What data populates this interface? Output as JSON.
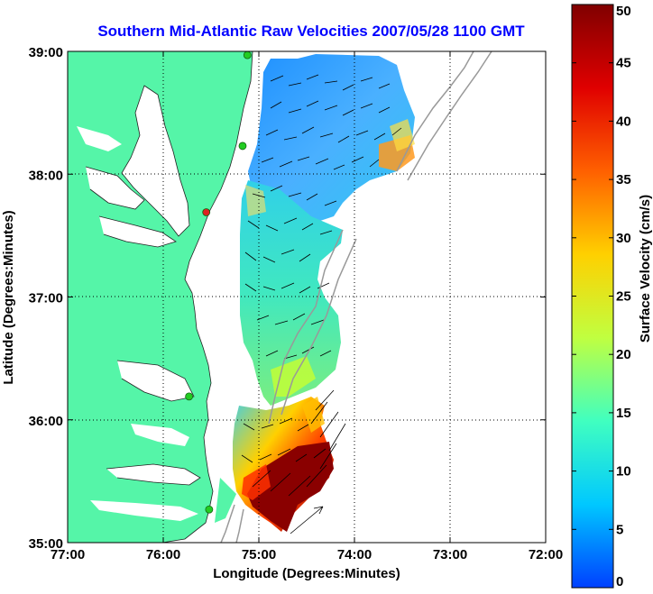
{
  "title": "Southern Mid-Atlantic Raw Velocities 2007/05/28 1100 GMT",
  "x_axis": {
    "label": "Longitude (Degrees:Minutes)",
    "ticks": [
      "77:00",
      "76:00",
      "75:00",
      "74:00",
      "73:00",
      "72:00"
    ]
  },
  "y_axis": {
    "label": "Latitude (Degrees:Minutes)",
    "ticks": [
      "39:00",
      "38:00",
      "37:00",
      "36:00",
      "35:00"
    ]
  },
  "colorbar": {
    "label": "Surface Velocity (cm/s)",
    "ticks": [
      "0",
      "5",
      "10",
      "15",
      "20",
      "25",
      "30",
      "35",
      "40",
      "45",
      "50"
    ],
    "range": [
      0,
      50
    ],
    "colors": [
      "#0040ff",
      "#00c8ff",
      "#40ffc0",
      "#c0ff40",
      "#ffd000",
      "#ff6000",
      "#e00000",
      "#800000"
    ]
  },
  "map": {
    "land_color": "#55f5a8",
    "water_color": "#ffffff",
    "grid": "dotted",
    "extent": {
      "lon": [
        -77,
        -72
      ],
      "lat": [
        35,
        39
      ]
    },
    "stations": [
      {
        "lon": -75.12,
        "lat": 38.97,
        "color": "#22cc22"
      },
      {
        "lon": -75.17,
        "lat": 38.23,
        "color": "#22cc22"
      },
      {
        "lon": -75.55,
        "lat": 37.69,
        "color": "#dd2222"
      },
      {
        "lon": -75.73,
        "lat": 36.19,
        "color": "#22cc22"
      },
      {
        "lon": -75.52,
        "lat": 35.27,
        "color": "#22cc22"
      }
    ]
  }
}
